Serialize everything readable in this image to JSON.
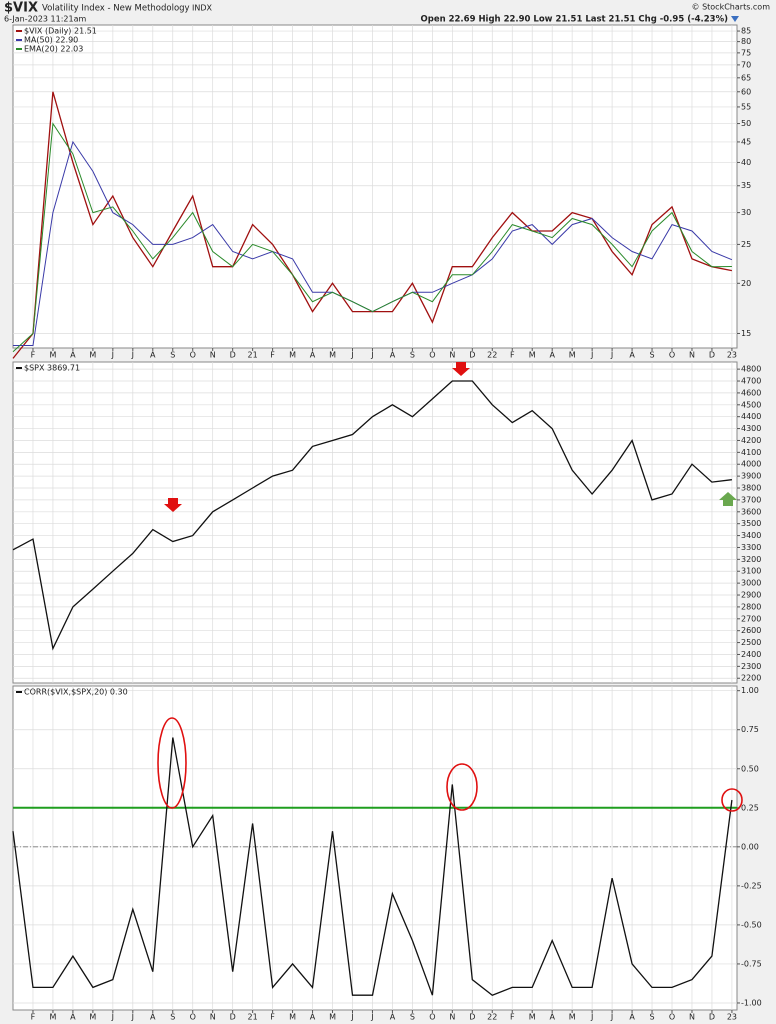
{
  "header": {
    "symbol": "$VIX",
    "name": "Volatility Index - New Methodology",
    "exchange": "INDX",
    "datetime": "6-Jan-2023 11:21am",
    "quote": "Open 22.69 High 22.90 Low 21.51 Last 21.51 Chg -0.95 (-4.23%)",
    "credit": "© StockCharts.com"
  },
  "chart_data": [
    {
      "type": "line",
      "log_scale": true,
      "grid": true,
      "x": [
        "2020-01",
        "2020-02",
        "2020-03",
        "2020-04",
        "2020-05",
        "2020-06",
        "2020-07",
        "2020-08",
        "2020-09",
        "2020-10",
        "2020-11",
        "2020-12",
        "2021-01",
        "2021-02",
        "2021-03",
        "2021-04",
        "2021-05",
        "2021-06",
        "2021-07",
        "2021-08",
        "2021-09",
        "2021-10",
        "2021-11",
        "2021-12",
        "2022-01",
        "2022-02",
        "2022-03",
        "2022-04",
        "2022-05",
        "2022-06",
        "2022-07",
        "2022-08",
        "2022-09",
        "2022-10",
        "2022-11",
        "2022-12",
        "2023-01"
      ],
      "series": [
        {
          "name": "$VIX (Daily) 21.51",
          "color": "#a01010",
          "values": [
            13,
            15,
            60,
            40,
            28,
            33,
            26,
            22,
            27,
            33,
            22,
            22,
            28,
            25,
            21,
            17,
            20,
            17,
            17,
            17,
            20,
            16,
            22,
            22,
            26,
            30,
            27,
            27,
            30,
            29,
            24,
            21,
            28,
            31,
            23,
            22,
            21.51
          ]
        },
        {
          "name": "MA(50) 22.90",
          "color": "#3a3aa8",
          "values": [
            14,
            14,
            30,
            45,
            38,
            30,
            28,
            25,
            25,
            26,
            28,
            24,
            23,
            24,
            23,
            19,
            19,
            18,
            17,
            18,
            19,
            19,
            20,
            21,
            23,
            27,
            28,
            25,
            28,
            29,
            26,
            24,
            23,
            28,
            27,
            24,
            22.9
          ]
        },
        {
          "name": "EMA(20) 22.03",
          "color": "#2a8a2a",
          "values": [
            13.5,
            15,
            50,
            42,
            30,
            31,
            27,
            23,
            26,
            30,
            24,
            22,
            25,
            24,
            21,
            18,
            19,
            18,
            17,
            18,
            19,
            18,
            21,
            21,
            24,
            28,
            27,
            26,
            29,
            28,
            25,
            22,
            27,
            30,
            24,
            22,
            22.03
          ]
        }
      ],
      "ylim": [
        13.8,
        88
      ],
      "yticks": [
        15,
        20,
        25,
        30,
        35,
        40,
        45,
        50,
        55,
        60,
        65,
        70,
        75,
        80,
        85
      ],
      "xticks": [
        {
          "value": "2020-02",
          "label": "F"
        },
        {
          "value": "2020-03",
          "label": "M"
        },
        {
          "value": "2020-04",
          "label": "A"
        },
        {
          "value": "2020-05",
          "label": "M"
        },
        {
          "value": "2020-06",
          "label": "J"
        },
        {
          "value": "2020-07",
          "label": "J"
        },
        {
          "value": "2020-08",
          "label": "A"
        },
        {
          "value": "2020-09",
          "label": "S"
        },
        {
          "value": "2020-10",
          "label": "O"
        },
        {
          "value": "2020-11",
          "label": "N"
        },
        {
          "value": "2020-12",
          "label": "D"
        },
        {
          "value": "2021-01",
          "label": "21"
        },
        {
          "value": "2021-02",
          "label": "F"
        },
        {
          "value": "2021-03",
          "label": "M"
        },
        {
          "value": "2021-04",
          "label": "A"
        },
        {
          "value": "2021-05",
          "label": "M"
        },
        {
          "value": "2021-06",
          "label": "J"
        },
        {
          "value": "2021-07",
          "label": "J"
        },
        {
          "value": "2021-08",
          "label": "A"
        },
        {
          "value": "2021-09",
          "label": "S"
        },
        {
          "value": "2021-10",
          "label": "O"
        },
        {
          "value": "2021-11",
          "label": "N"
        },
        {
          "value": "2021-12",
          "label": "D"
        },
        {
          "value": "2022-01",
          "label": "22"
        },
        {
          "value": "2022-02",
          "label": "F"
        },
        {
          "value": "2022-03",
          "label": "M"
        },
        {
          "value": "2022-04",
          "label": "A"
        },
        {
          "value": "2022-05",
          "label": "M"
        },
        {
          "value": "2022-06",
          "label": "J"
        },
        {
          "value": "2022-07",
          "label": "J"
        },
        {
          "value": "2022-08",
          "label": "A"
        },
        {
          "value": "2022-09",
          "label": "S"
        },
        {
          "value": "2022-10",
          "label": "O"
        },
        {
          "value": "2022-11",
          "label": "N"
        },
        {
          "value": "2022-12",
          "label": "D"
        },
        {
          "value": "2023-01",
          "label": "23"
        }
      ]
    },
    {
      "type": "line",
      "grid": true,
      "x": [
        "2020-01",
        "2020-02",
        "2020-03",
        "2020-04",
        "2020-05",
        "2020-06",
        "2020-07",
        "2020-08",
        "2020-09",
        "2020-10",
        "2020-11",
        "2020-12",
        "2021-01",
        "2021-02",
        "2021-03",
        "2021-04",
        "2021-05",
        "2021-06",
        "2021-07",
        "2021-08",
        "2021-09",
        "2021-10",
        "2021-11",
        "2021-12",
        "2022-01",
        "2022-02",
        "2022-03",
        "2022-04",
        "2022-05",
        "2022-06",
        "2022-07",
        "2022-08",
        "2022-09",
        "2022-10",
        "2022-11",
        "2022-12",
        "2023-01"
      ],
      "series": [
        {
          "name": "$SPX 3869.71",
          "color": "#111111",
          "values": [
            3280,
            3370,
            2450,
            2800,
            2950,
            3100,
            3250,
            3450,
            3350,
            3400,
            3600,
            3700,
            3800,
            3900,
            3950,
            4150,
            4200,
            4250,
            4400,
            4500,
            4400,
            4550,
            4700,
            4700,
            4500,
            4350,
            4450,
            4300,
            3950,
            3750,
            3950,
            4200,
            3700,
            3750,
            4000,
            3850,
            3869.71
          ]
        }
      ],
      "ylim": [
        2160,
        4860
      ],
      "yticks": [
        2200,
        2300,
        2400,
        2500,
        2600,
        2700,
        2800,
        2900,
        3000,
        3100,
        3200,
        3300,
        3400,
        3500,
        3600,
        3700,
        3800,
        3900,
        4000,
        4100,
        4200,
        4300,
        4400,
        4500,
        4600,
        4700,
        4800
      ]
    },
    {
      "type": "line",
      "grid": true,
      "x": [
        "2020-01",
        "2020-02",
        "2020-03",
        "2020-04",
        "2020-05",
        "2020-06",
        "2020-07",
        "2020-08",
        "2020-09",
        "2020-10",
        "2020-11",
        "2020-12",
        "2021-01",
        "2021-02",
        "2021-03",
        "2021-04",
        "2021-05",
        "2021-06",
        "2021-07",
        "2021-08",
        "2021-09",
        "2021-10",
        "2021-11",
        "2021-12",
        "2022-01",
        "2022-02",
        "2022-03",
        "2022-04",
        "2022-05",
        "2022-06",
        "2022-07",
        "2022-08",
        "2022-09",
        "2022-10",
        "2022-11",
        "2022-12",
        "2023-01"
      ],
      "series": [
        {
          "name": "CORR($VIX,$SPX,20) 0.30",
          "color": "#111111",
          "values": [
            0.1,
            -0.9,
            -0.9,
            -0.7,
            -0.9,
            -0.85,
            -0.4,
            -0.8,
            0.7,
            0.0,
            0.2,
            -0.8,
            0.15,
            -0.9,
            -0.75,
            -0.9,
            0.1,
            -0.95,
            -0.95,
            -0.3,
            -0.6,
            -0.95,
            0.4,
            -0.85,
            -0.95,
            -0.9,
            -0.9,
            -0.6,
            -0.9,
            -0.9,
            -0.2,
            -0.75,
            -0.9,
            -0.9,
            -0.85,
            -0.7,
            0.3
          ]
        }
      ],
      "hline": {
        "value": 0.25,
        "color": "#1f9e1f"
      },
      "ylim": [
        -1.045,
        1.03
      ],
      "yticks": [
        {
          "value": -1,
          "label": "-1.00"
        },
        {
          "value": -0.75,
          "label": "-0.75"
        },
        {
          "value": -0.5,
          "label": "-0.50"
        },
        {
          "value": -0.25,
          "label": "-0.25"
        },
        {
          "value": 0,
          "label": "0.00"
        },
        {
          "value": 0.25,
          "label": "0.25"
        },
        {
          "value": 0.5,
          "label": "0.50"
        },
        {
          "value": 0.75,
          "label": "0.75"
        },
        {
          "value": 1,
          "label": "1.00"
        }
      ],
      "xticks": [
        {
          "value": "2020-02",
          "label": "F"
        },
        {
          "value": "2020-03",
          "label": "M"
        },
        {
          "value": "2020-04",
          "label": "A"
        },
        {
          "value": "2020-05",
          "label": "M"
        },
        {
          "value": "2020-06",
          "label": "J"
        },
        {
          "value": "2020-07",
          "label": "J"
        },
        {
          "value": "2020-08",
          "label": "A"
        },
        {
          "value": "2020-09",
          "label": "S"
        },
        {
          "value": "2020-10",
          "label": "O"
        },
        {
          "value": "2020-11",
          "label": "N"
        },
        {
          "value": "2020-12",
          "label": "D"
        },
        {
          "value": "2021-01",
          "label": "21"
        },
        {
          "value": "2021-02",
          "label": "F"
        },
        {
          "value": "2021-03",
          "label": "M"
        },
        {
          "value": "2021-04",
          "label": "A"
        },
        {
          "value": "2021-05",
          "label": "M"
        },
        {
          "value": "2021-06",
          "label": "J"
        },
        {
          "value": "2021-07",
          "label": "J"
        },
        {
          "value": "2021-08",
          "label": "A"
        },
        {
          "value": "2021-09",
          "label": "S"
        },
        {
          "value": "2021-10",
          "label": "O"
        },
        {
          "value": "2021-11",
          "label": "N"
        },
        {
          "value": "2021-12",
          "label": "D"
        },
        {
          "value": "2022-01",
          "label": "22"
        },
        {
          "value": "2022-02",
          "label": "F"
        },
        {
          "value": "2022-03",
          "label": "M"
        },
        {
          "value": "2022-04",
          "label": "A"
        },
        {
          "value": "2022-05",
          "label": "M"
        },
        {
          "value": "2022-06",
          "label": "J"
        },
        {
          "value": "2022-07",
          "label": "J"
        },
        {
          "value": "2022-08",
          "label": "A"
        },
        {
          "value": "2022-09",
          "label": "S"
        },
        {
          "value": "2022-10",
          "label": "O"
        },
        {
          "value": "2022-11",
          "label": "N"
        },
        {
          "value": "2022-12",
          "label": "D"
        },
        {
          "value": "2023-01",
          "label": "23"
        }
      ]
    }
  ]
}
